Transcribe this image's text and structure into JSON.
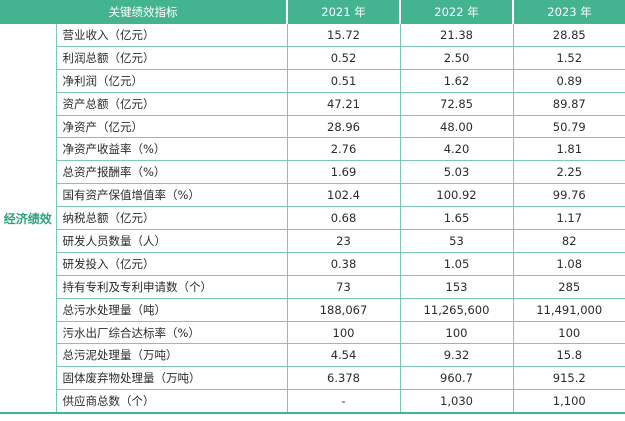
{
  "header": {
    "indicator": "关键绩效指标",
    "years": [
      "2021 年",
      "2022 年",
      "2023 年"
    ]
  },
  "category": "经济绩效",
  "rows": [
    {
      "name": "营业收入（亿元）",
      "v2021": "15.72",
      "v2022": "21.38",
      "v2023": "28.85"
    },
    {
      "name": "利润总额（亿元）",
      "v2021": "0.52",
      "v2022": "2.50",
      "v2023": "1.52"
    },
    {
      "name": "净利润（亿元）",
      "v2021": "0.51",
      "v2022": "1.62",
      "v2023": "0.89"
    },
    {
      "name": "资产总额（亿元）",
      "v2021": "47.21",
      "v2022": "72.85",
      "v2023": "89.87"
    },
    {
      "name": "净资产（亿元）",
      "v2021": "28.96",
      "v2022": "48.00",
      "v2023": "50.79"
    },
    {
      "name": "净资产收益率（%）",
      "v2021": "2.76",
      "v2022": "4.20",
      "v2023": "1.81"
    },
    {
      "name": "总资产报酬率（%）",
      "v2021": "1.69",
      "v2022": "5.03",
      "v2023": "2.25"
    },
    {
      "name": "国有资产保值增值率（%）",
      "v2021": "102.4",
      "v2022": "100.92",
      "v2023": "99.76"
    },
    {
      "name": "纳税总额（亿元）",
      "v2021": "0.68",
      "v2022": "1.65",
      "v2023": "1.17"
    },
    {
      "name": "研发人员数量（人）",
      "v2021": "23",
      "v2022": "53",
      "v2023": "82"
    },
    {
      "name": "研发投入（亿元）",
      "v2021": "0.38",
      "v2022": "1.05",
      "v2023": "1.08"
    },
    {
      "name": "持有专利及专利申请数（个）",
      "v2021": "73",
      "v2022": "153",
      "v2023": "285"
    },
    {
      "name": "总污水处理量（吨）",
      "v2021": "188,067",
      "v2022": "11,265,600",
      "v2023": "11,491,000"
    },
    {
      "name": "污水出厂综合达标率（%）",
      "v2021": "100",
      "v2022": "100",
      "v2023": "100"
    },
    {
      "name": "总污泥处理量（万吨）",
      "v2021": "4.54",
      "v2022": "9.32",
      "v2023": "15.8"
    },
    {
      "name": "固体废弃物处理量（万吨）",
      "v2021": "6.378",
      "v2022": "960.7",
      "v2023": "915.2"
    },
    {
      "name": "供应商总数（个）",
      "v2021": "-",
      "v2022": "1,030",
      "v2023": "1,100"
    }
  ],
  "colors": {
    "header_bg": "#43b48f",
    "header_text": "#ffffff",
    "category_text": "#2fa37c",
    "row_divider": "#7cc9ad"
  }
}
